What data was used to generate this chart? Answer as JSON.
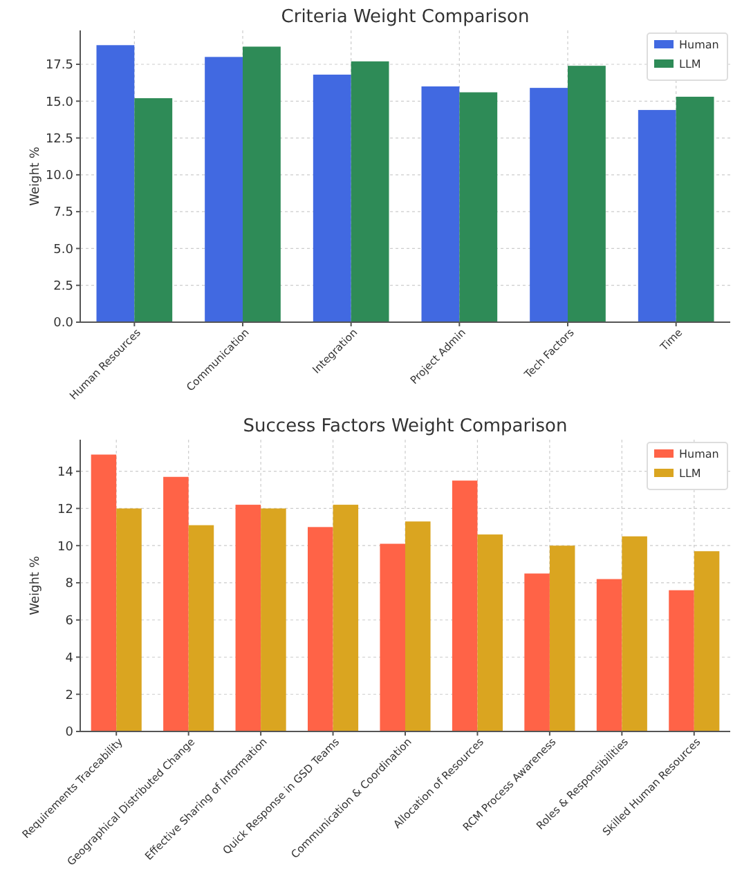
{
  "chart_data": [
    {
      "type": "bar",
      "title": "Criteria Weight Comparison",
      "ylabel": "Weight %",
      "categories": [
        "Human Resources",
        "Communication",
        "Integration",
        "Project Admin",
        "Tech Factors",
        "Time"
      ],
      "series": [
        {
          "name": "Human",
          "color": "#4169e1",
          "values": [
            18.8,
            18.0,
            16.8,
            16.0,
            15.9,
            14.4
          ]
        },
        {
          "name": "LLM",
          "color": "#2e8b57",
          "values": [
            15.2,
            18.7,
            17.7,
            15.6,
            17.4,
            15.3
          ]
        }
      ],
      "ylim": [
        0,
        19.8
      ],
      "yticks": [
        {
          "value": 0,
          "label": "0.0"
        },
        2.5,
        {
          "value": 5,
          "label": "5.0"
        },
        7.5,
        {
          "value": 10,
          "label": "10.0"
        },
        12.5,
        {
          "value": 15,
          "label": "15.0"
        },
        17.5
      ],
      "grid": true,
      "legend": "top right"
    },
    {
      "type": "bar",
      "title": "Success Factors Weight Comparison",
      "ylabel": "Weight %",
      "categories": [
        "Requirements Traceability",
        "Geographical Distributed Change",
        "Effective Sharing of Information",
        "Quick Response in GSD Teams",
        "Communication & Coordination",
        "Allocation of Resources",
        "RCM Process Awareness",
        "Roles & Responsibilities",
        "Skilled Human Resources"
      ],
      "series": [
        {
          "name": "Human",
          "color": "#ff6347",
          "values": [
            14.9,
            13.7,
            12.2,
            11.0,
            10.1,
            13.5,
            8.5,
            8.2,
            7.6
          ]
        },
        {
          "name": "LLM",
          "color": "#daa520",
          "values": [
            12.0,
            11.1,
            12.0,
            12.2,
            11.3,
            10.6,
            10.0,
            10.5,
            9.7
          ]
        }
      ],
      "ylim": [
        0,
        15.7
      ],
      "yticks": [
        0,
        2,
        4,
        6,
        8,
        10,
        12,
        14
      ],
      "grid": true,
      "legend": "top right"
    }
  ]
}
